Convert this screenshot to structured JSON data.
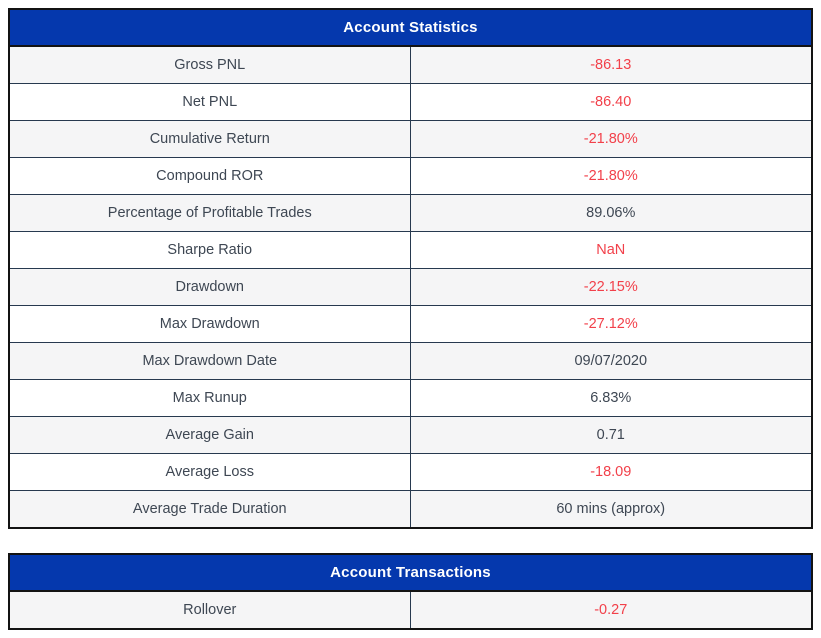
{
  "colors": {
    "header_bg": "#0538ad",
    "header_text": "#ffffff",
    "border_outer": "#131313",
    "border_inner": "#27394f",
    "row_alt_bg": "#f5f5f6",
    "row_bg": "#ffffff",
    "label_text": "#3e4753",
    "negative": "#f2404a"
  },
  "tables": [
    {
      "title": "Account Statistics",
      "rows": [
        {
          "label": "Gross PNL",
          "value": "-86.13",
          "negative": true
        },
        {
          "label": "Net PNL",
          "value": "-86.40",
          "negative": true
        },
        {
          "label": "Cumulative Return",
          "value": "-21.80%",
          "negative": true
        },
        {
          "label": "Compound ROR",
          "value": "-21.80%",
          "negative": true
        },
        {
          "label": "Percentage of Profitable Trades",
          "value": "89.06%",
          "negative": false
        },
        {
          "label": "Sharpe Ratio",
          "value": "NaN",
          "negative": true
        },
        {
          "label": "Drawdown",
          "value": "-22.15%",
          "negative": true
        },
        {
          "label": "Max Drawdown",
          "value": "-27.12%",
          "negative": true
        },
        {
          "label": "Max Drawdown Date",
          "value": "09/07/2020",
          "negative": false
        },
        {
          "label": "Max Runup",
          "value": "6.83%",
          "negative": false
        },
        {
          "label": "Average Gain",
          "value": "0.71",
          "negative": false
        },
        {
          "label": "Average Loss",
          "value": "-18.09",
          "negative": true
        },
        {
          "label": "Average Trade Duration",
          "value": "60 mins (approx)",
          "negative": false
        }
      ]
    },
    {
      "title": "Account Transactions",
      "rows": [
        {
          "label": "Rollover",
          "value": "-0.27",
          "negative": true
        }
      ]
    }
  ]
}
